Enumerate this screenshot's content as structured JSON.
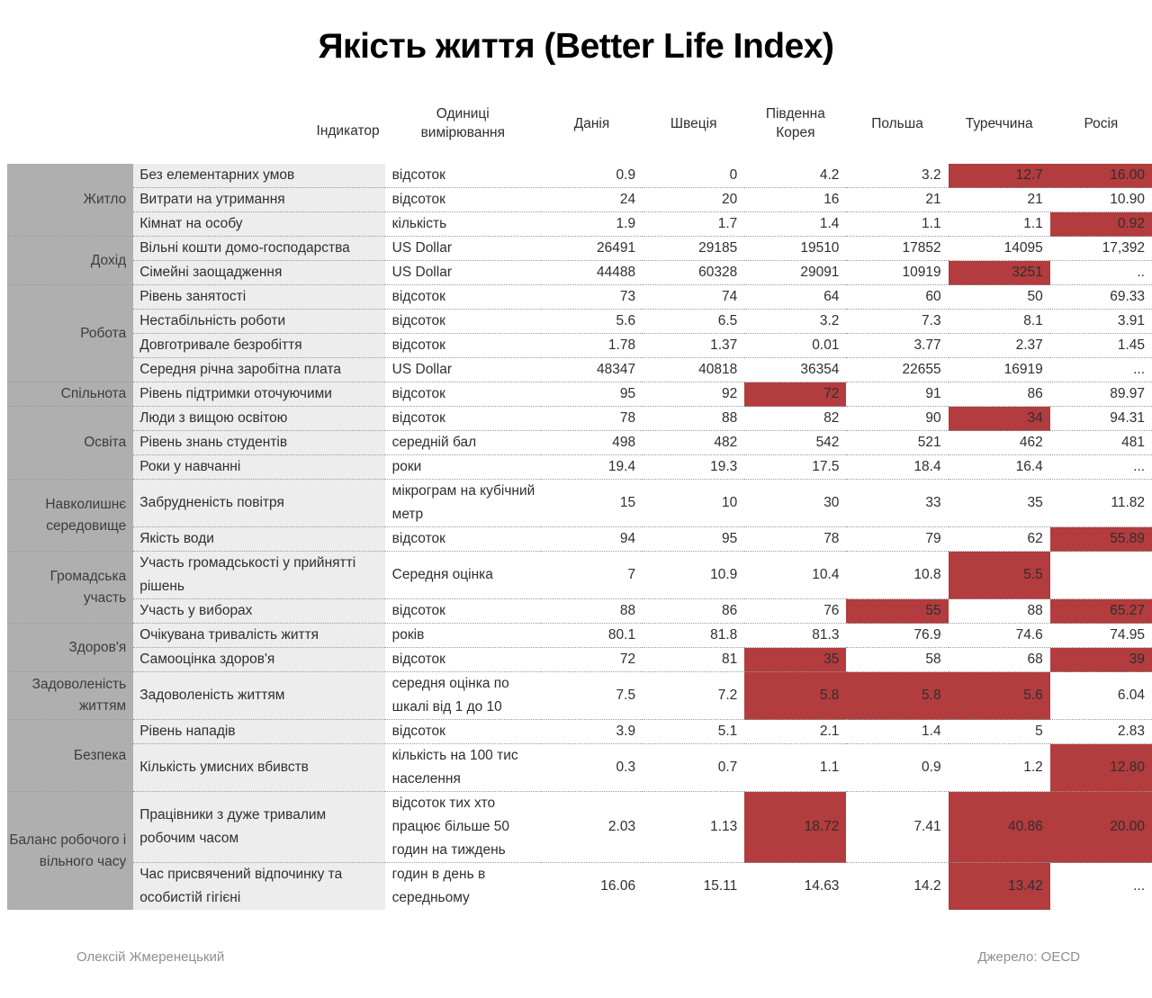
{
  "colors": {
    "highlight": "#b23c3e",
    "category_bg": "#afafaf",
    "indicator_bg": "#ededed"
  },
  "footer": {
    "author": "Олексій Жмеренецький",
    "source": "Джерело: OECD"
  },
  "chart_data": {
    "type": "table",
    "title": "Якість життя (Better Life Index)",
    "columns": [
      "Індикатор",
      "Одиниці вимірювання",
      "Данія",
      "Швеція",
      "Південна Корея",
      "Польша",
      "Туреччина",
      "Росія"
    ],
    "highlight_color_meaning": "#b23c3e",
    "groups": [
      {
        "category": "Житло",
        "rows": [
          {
            "indicator": "Без елементарних умов",
            "units": "відсоток",
            "values": [
              "0.9",
              "0",
              "4.2",
              "3.2",
              "12.7",
              "16.00"
            ],
            "highlight": [
              4,
              5
            ]
          },
          {
            "indicator": "Витрати на утримання",
            "units": "відсоток",
            "values": [
              "24",
              "20",
              "16",
              "21",
              "21",
              "10.90"
            ],
            "highlight": []
          },
          {
            "indicator": "Кімнат на особу",
            "units": "кількість",
            "values": [
              "1.9",
              "1.7",
              "1.4",
              "1.1",
              "1.1",
              "0.92"
            ],
            "highlight": [
              5
            ]
          }
        ]
      },
      {
        "category": "Дохід",
        "rows": [
          {
            "indicator": "Вільні кошти домо-господарства",
            "units": "US Dollar",
            "values": [
              "26491",
              "29185",
              "19510",
              "17852",
              "14095",
              "17,392"
            ],
            "highlight": []
          },
          {
            "indicator": "Сімейні заощадження",
            "units": "US Dollar",
            "values": [
              "44488",
              "60328",
              "29091",
              "10919",
              "3251",
              ".."
            ],
            "highlight": [
              4
            ]
          }
        ]
      },
      {
        "category": "Робота",
        "rows": [
          {
            "indicator": "Рівень занятості",
            "units": "відсоток",
            "values": [
              "73",
              "74",
              "64",
              "60",
              "50",
              "69.33"
            ],
            "highlight": []
          },
          {
            "indicator": "Нестабільність роботи",
            "units": "відсоток",
            "values": [
              "5.6",
              "6.5",
              "3.2",
              "7.3",
              "8.1",
              "3.91"
            ],
            "highlight": []
          },
          {
            "indicator": "Довготривале безробіття",
            "units": "відсоток",
            "values": [
              "1.78",
              "1.37",
              "0.01",
              "3.77",
              "2.37",
              "1.45"
            ],
            "highlight": []
          },
          {
            "indicator": "Середня річна заробітна плата",
            "units": "US Dollar",
            "values": [
              "48347",
              "40818",
              "36354",
              "22655",
              "16919",
              "..."
            ],
            "highlight": []
          }
        ]
      },
      {
        "category": "Спільнота",
        "rows": [
          {
            "indicator": "Рівень підтримки оточуючими",
            "units": "відсоток",
            "values": [
              "95",
              "92",
              "72",
              "91",
              "86",
              "89.97"
            ],
            "highlight": [
              2
            ]
          }
        ]
      },
      {
        "category": "Освіта",
        "rows": [
          {
            "indicator": "Люди з вищою освітою",
            "units": "відсоток",
            "values": [
              "78",
              "88",
              "82",
              "90",
              "34",
              "94.31"
            ],
            "highlight": [
              4
            ]
          },
          {
            "indicator": "Рівень знань студентів",
            "units": "середній бал",
            "values": [
              "498",
              "482",
              "542",
              "521",
              "462",
              "481"
            ],
            "highlight": []
          },
          {
            "indicator": "Роки у навчанні",
            "units": "роки",
            "values": [
              "19.4",
              "19.3",
              "17.5",
              "18.4",
              "16.4",
              "..."
            ],
            "highlight": []
          }
        ]
      },
      {
        "category": "Навколишнє середовище",
        "rows": [
          {
            "indicator": "Забрудненість повітря",
            "units": "мікрограм на кубічний метр",
            "values": [
              "15",
              "10",
              "30",
              "33",
              "35",
              "11.82"
            ],
            "highlight": []
          },
          {
            "indicator": "Якість води",
            "units": "відсоток",
            "values": [
              "94",
              "95",
              "78",
              "79",
              "62",
              "55.89"
            ],
            "highlight": [
              5
            ]
          }
        ]
      },
      {
        "category": "Громадська участь",
        "rows": [
          {
            "indicator": "Участь громадськості у прийнятті рішень",
            "units": "Середня оцінка",
            "values": [
              "7",
              "10.9",
              "10.4",
              "10.8",
              "5.5",
              ""
            ],
            "highlight": [
              4
            ]
          },
          {
            "indicator": "Участь у виборах",
            "units": "відсоток",
            "values": [
              "88",
              "86",
              "76",
              "55",
              "88",
              "65.27"
            ],
            "highlight": [
              3,
              5
            ]
          }
        ]
      },
      {
        "category": "Здоров'я",
        "rows": [
          {
            "indicator": "Очікувана тривалість життя",
            "units": "років",
            "values": [
              "80.1",
              "81.8",
              "81.3",
              "76.9",
              "74.6",
              "74.95"
            ],
            "highlight": []
          },
          {
            "indicator": "Самооцінка здоров'я",
            "units": "відсоток",
            "values": [
              "72",
              "81",
              "35",
              "58",
              "68",
              "39"
            ],
            "highlight": [
              2,
              5
            ]
          }
        ]
      },
      {
        "category": "Задоволеність життям",
        "rows": [
          {
            "indicator": "Задоволеність життям",
            "units": "середня оцінка по шкалі від 1 до 10",
            "values": [
              "7.5",
              "7.2",
              "5.8",
              "5.8",
              "5.6",
              "6.04"
            ],
            "highlight": [
              2,
              3,
              4
            ]
          }
        ]
      },
      {
        "category": "Безпека",
        "rows": [
          {
            "indicator": "Рівень нападів",
            "units": "відсоток",
            "values": [
              "3.9",
              "5.1",
              "2.1",
              "1.4",
              "5",
              "2.83"
            ],
            "highlight": []
          },
          {
            "indicator": "Кількість умисних вбивств",
            "units": "кількість на 100 тис населення",
            "values": [
              "0.3",
              "0.7",
              "1.1",
              "0.9",
              "1.2",
              "12.80"
            ],
            "highlight": [
              5
            ]
          }
        ]
      },
      {
        "category": "Баланс робочого і вільного часу",
        "rows": [
          {
            "indicator": "Працівники з дуже тривалим робочим часом",
            "units": "відсоток тих хто працює більше 50 годин на тиждень",
            "values": [
              "2.03",
              "1.13",
              "18.72",
              "7.41",
              "40.86",
              "20.00"
            ],
            "highlight": [
              2,
              4,
              5
            ]
          },
          {
            "indicator": "Час присвячений відпочинку та особистій гігієні",
            "units": "годин в день в середньому",
            "values": [
              "16.06",
              "15.11",
              "14.63",
              "14.2",
              "13.42",
              "..."
            ],
            "highlight": [
              4
            ]
          }
        ]
      }
    ]
  }
}
